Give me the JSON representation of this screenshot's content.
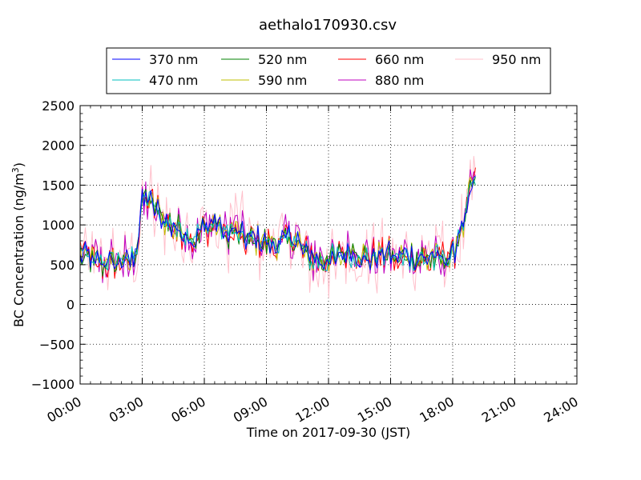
{
  "chart_data": {
    "type": "line",
    "title": "aethalo170930.csv",
    "xlabel": "Time on 2017-09-30 (JST)",
    "ylabel": "BC Concentration (ng/m³)",
    "ylabel_parts": [
      "BC Concentration (ng/m",
      "3",
      ")"
    ],
    "xlim": [
      0,
      24
    ],
    "ylim": [
      -1000,
      2500
    ],
    "x_unit": "hours",
    "x_ticks": [
      0,
      3,
      6,
      9,
      12,
      15,
      18,
      21,
      24
    ],
    "x_tick_labels": [
      "00:00",
      "03:00",
      "06:00",
      "09:00",
      "12:00",
      "15:00",
      "18:00",
      "21:00",
      "24:00"
    ],
    "y_ticks": [
      -1000,
      -500,
      0,
      500,
      1000,
      1500,
      2000,
      2500
    ],
    "y_tick_labels": [
      "−1000",
      "−500",
      "0",
      "500",
      "1000",
      "1500",
      "2000",
      "2500"
    ],
    "grid": true,
    "legend_position": "top-center",
    "baseline_shape": {
      "x": [
        0.0,
        0.5,
        1.0,
        1.5,
        2.0,
        2.5,
        2.8,
        3.0,
        3.3,
        3.7,
        4.2,
        4.6,
        5.0,
        5.5,
        6.0,
        6.5,
        7.0,
        7.5,
        8.0,
        8.5,
        9.0,
        9.5,
        10.0,
        10.5,
        11.0,
        11.5,
        12.0,
        12.5,
        13.0,
        13.5,
        14.0,
        14.5,
        15.0,
        15.5,
        16.0,
        16.5,
        17.0,
        17.5,
        18.0,
        18.3,
        18.6,
        18.9,
        19.1
      ],
      "y": [
        650,
        560,
        530,
        520,
        560,
        560,
        800,
        1300,
        1350,
        1180,
        1050,
        950,
        930,
        800,
        950,
        1020,
        880,
        950,
        820,
        830,
        780,
        750,
        850,
        800,
        620,
        550,
        560,
        600,
        650,
        620,
        580,
        650,
        620,
        580,
        600,
        580,
        570,
        560,
        600,
        900,
        1050,
        1500,
        1500
      ]
    },
    "series": [
      {
        "name": "370 nm",
        "color": "#0000ff",
        "noise": 160
      },
      {
        "name": "470 nm",
        "color": "#00bfbf",
        "noise": 170
      },
      {
        "name": "520 nm",
        "color": "#008000",
        "noise": 180
      },
      {
        "name": "590 nm",
        "color": "#bfbf00",
        "noise": 200
      },
      {
        "name": "660 nm",
        "color": "#ff0000",
        "noise": 220
      },
      {
        "name": "880 nm",
        "color": "#bf00bf",
        "noise": 300
      },
      {
        "name": "950 nm",
        "color": "#ffc0cb",
        "noise": 480
      }
    ],
    "sample_count": 230
  }
}
